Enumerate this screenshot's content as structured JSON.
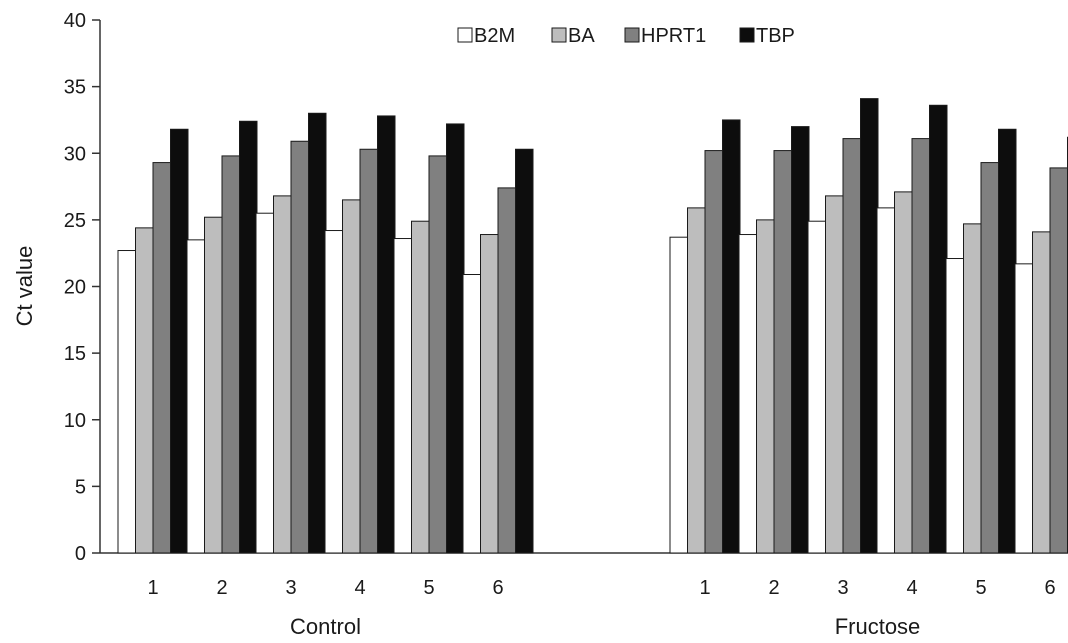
{
  "chart_data": {
    "type": "bar",
    "ylabel": "Ct value",
    "ylim": [
      0,
      40
    ],
    "yticks": [
      0,
      5,
      10,
      15,
      20,
      25,
      30,
      35,
      40
    ],
    "legend_position": "top-center",
    "grid": false,
    "groups": [
      {
        "label": "Control",
        "categories": [
          "1",
          "2",
          "3",
          "4",
          "5",
          "6"
        ]
      },
      {
        "label": "Fructose",
        "categories": [
          "1",
          "2",
          "3",
          "4",
          "5",
          "6"
        ]
      }
    ],
    "series": [
      {
        "name": "B2M",
        "color": "#ffffff",
        "values": [
          22.7,
          23.5,
          25.5,
          24.2,
          23.6,
          20.9,
          23.7,
          23.9,
          24.9,
          25.9,
          22.1,
          21.7
        ]
      },
      {
        "name": "BA",
        "color": "#bdbdbd",
        "values": [
          24.4,
          25.2,
          26.8,
          26.5,
          24.9,
          23.9,
          25.9,
          25.0,
          26.8,
          27.1,
          24.7,
          24.1
        ]
      },
      {
        "name": "HPRT1",
        "color": "#808080",
        "values": [
          29.3,
          29.8,
          30.9,
          30.3,
          29.8,
          27.4,
          30.2,
          30.2,
          31.1,
          31.1,
          29.3,
          28.9
        ]
      },
      {
        "name": "TBP",
        "color": "#0d0d0d",
        "values": [
          31.8,
          32.4,
          33.0,
          32.8,
          32.2,
          30.3,
          32.5,
          32.0,
          34.1,
          33.6,
          31.8,
          31.2
        ]
      }
    ]
  }
}
